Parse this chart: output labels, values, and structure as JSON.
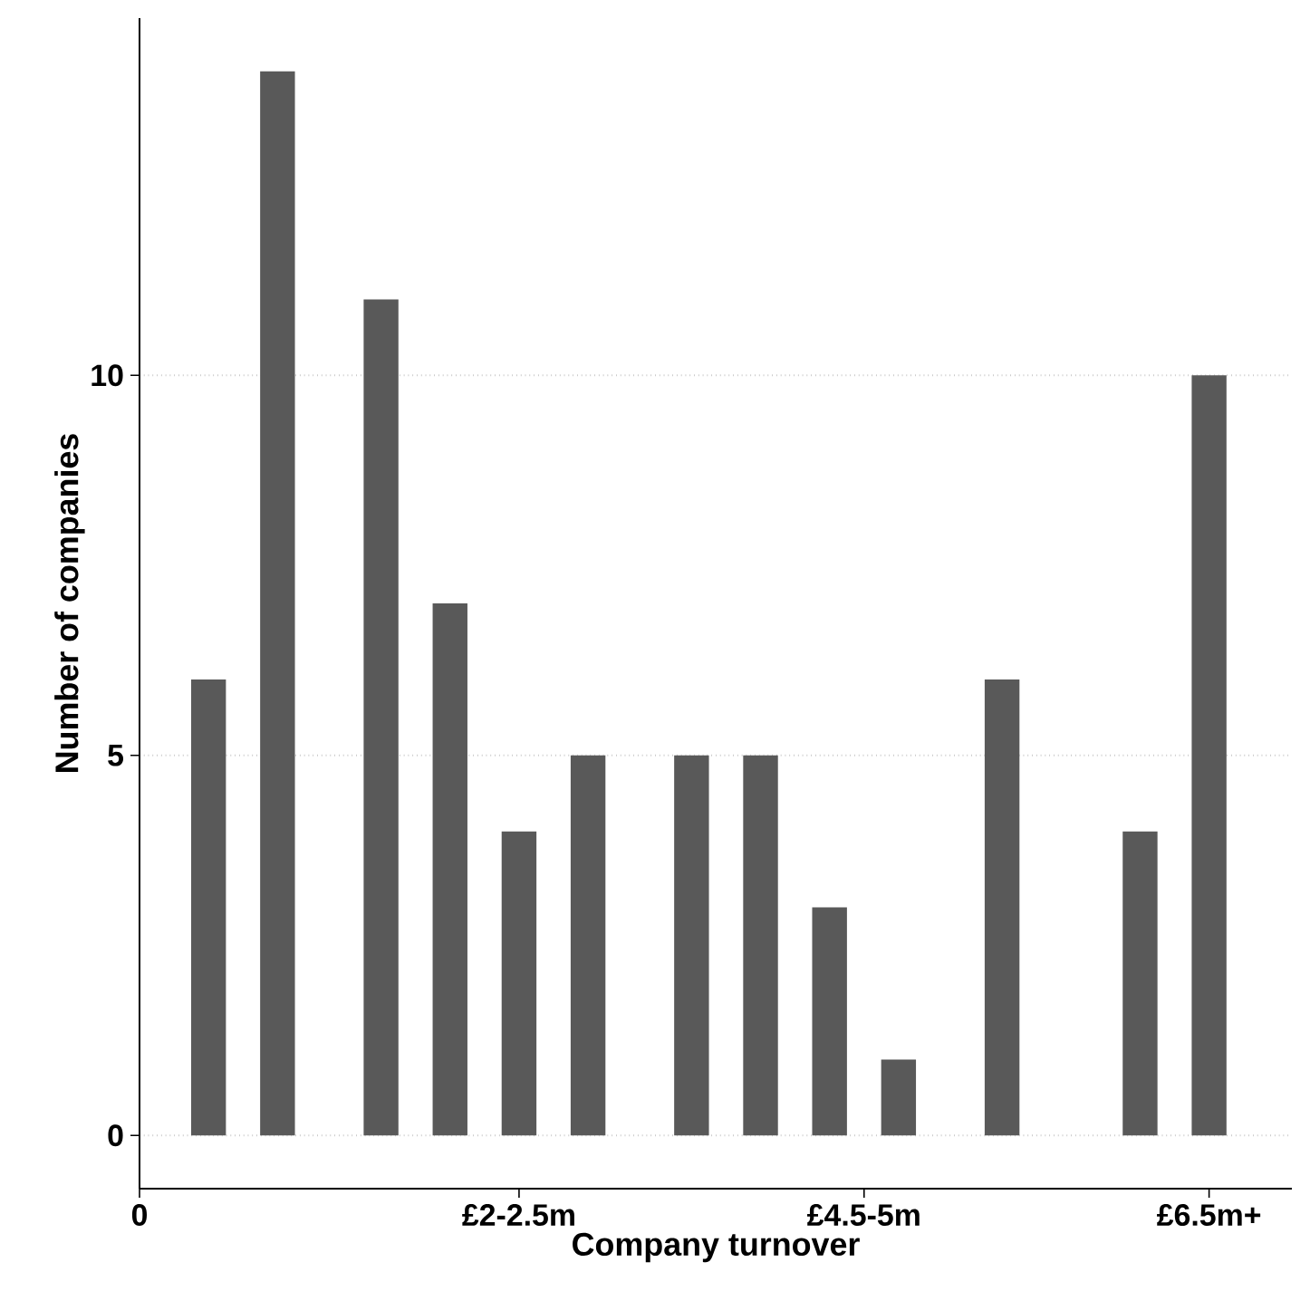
{
  "chart_data": {
    "type": "bar",
    "xlabel": "Company turnover",
    "ylabel": "Number of companies",
    "categories": [
      "0",
      null,
      null,
      null,
      null,
      null,
      null,
      null,
      null,
      null,
      null,
      "£2-2.5m",
      null,
      null,
      null,
      null,
      null,
      null,
      null,
      null,
      null,
      "£4.5-5m",
      null,
      null,
      null,
      null,
      null,
      null,
      null,
      null,
      null,
      "£6.5m+"
    ],
    "values": [
      null,
      null,
      6,
      null,
      14,
      null,
      null,
      11,
      null,
      7,
      null,
      4,
      null,
      5,
      null,
      null,
      5,
      null,
      5,
      null,
      3,
      null,
      1,
      null,
      null,
      6,
      null,
      null,
      null,
      4,
      null,
      10
    ],
    "color": "#595959",
    "ylim": [
      -0.7,
      14.7
    ],
    "yticks": [
      0,
      5,
      10
    ],
    "grid": "y"
  }
}
